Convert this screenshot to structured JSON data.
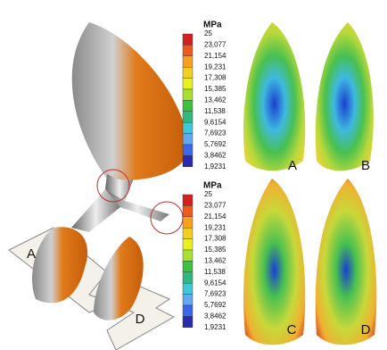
{
  "legends": [
    {
      "unit": "MPa",
      "labels": [
        "25",
        "23,077",
        "21,154",
        "19,231",
        "17,308",
        "15,385",
        "13,462",
        "11,538",
        "9,6154",
        "7,6923",
        "5,7692",
        "3,8462",
        "1,9231"
      ]
    },
    {
      "unit": "MPa",
      "labels": [
        "25",
        "23,077",
        "21,154",
        "19,231",
        "17,308",
        "15,385",
        "13,462",
        "11,538",
        "9,6154",
        "7,6923",
        "5,7692",
        "3,8462",
        "1,9231"
      ]
    }
  ],
  "panels": [
    "A",
    "B",
    "C",
    "D"
  ],
  "arrows": [
    "A",
    "D"
  ]
}
